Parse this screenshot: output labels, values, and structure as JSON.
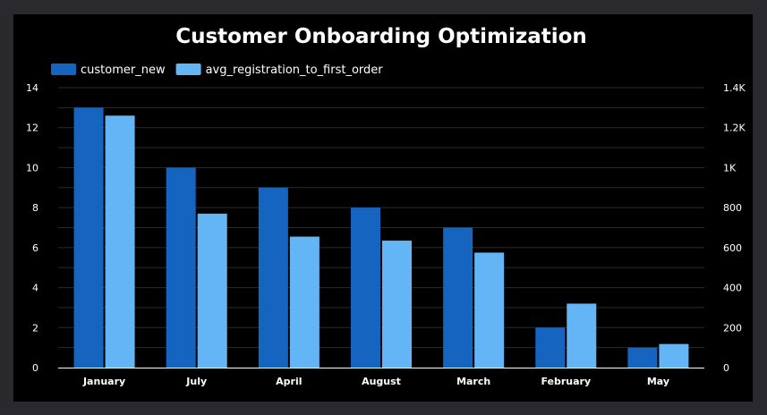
{
  "colors": {
    "page_bg": "#2a292e",
    "panel_bg": "#000000",
    "gridline": "#2b2b2b",
    "axis_line": "#ffffff",
    "text": "#ffffff"
  },
  "chart_data": {
    "type": "bar",
    "title": "Customer Onboarding Optimization",
    "categories": [
      "January",
      "July",
      "April",
      "August",
      "March",
      "February",
      "May"
    ],
    "series": [
      {
        "name": "customer_new",
        "axis": "left",
        "color": "#1565c0",
        "values": [
          13,
          10,
          9,
          8,
          7,
          2,
          1
        ]
      },
      {
        "name": "avg_registration_to_first_order",
        "axis": "right",
        "color": "#64b5f6",
        "values": [
          1260,
          770,
          655,
          635,
          575,
          320,
          118
        ]
      }
    ],
    "y_left": {
      "ylim": [
        0,
        14
      ],
      "ticks": [
        "0",
        "2",
        "4",
        "6",
        "8",
        "10",
        "12",
        "14"
      ]
    },
    "y_right": {
      "ylim": [
        0,
        1400
      ],
      "ticks": [
        "0",
        "200",
        "400",
        "600",
        "800",
        "1K",
        "1.2K",
        "1.4K"
      ]
    },
    "legend_position": "top-left",
    "grid": true
  }
}
